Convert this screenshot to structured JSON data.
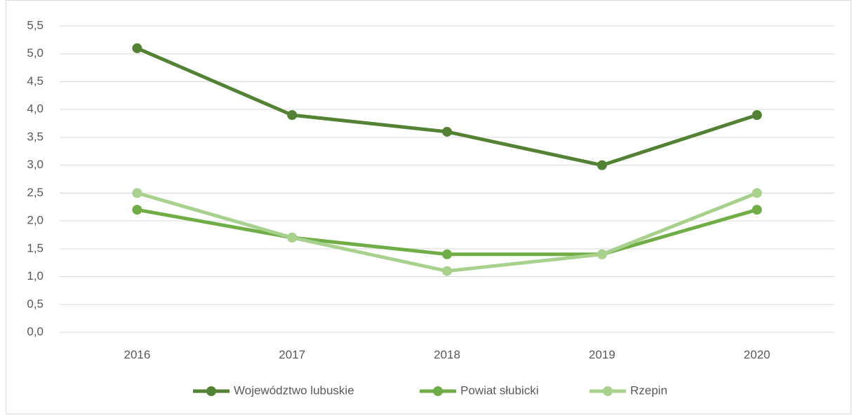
{
  "chart_data": {
    "type": "line",
    "categories": [
      "2016",
      "2017",
      "2018",
      "2019",
      "2020"
    ],
    "series": [
      {
        "name": "Województwo lubuskie",
        "color": "#548235",
        "values": [
          5.1,
          3.9,
          3.6,
          3.0,
          3.9
        ]
      },
      {
        "name": "Powiat słubicki",
        "color": "#70ad47",
        "values": [
          2.2,
          1.7,
          1.4,
          1.4,
          2.2
        ]
      },
      {
        "name": "Rzepin",
        "color": "#a9d18e",
        "values": [
          2.5,
          1.7,
          1.1,
          1.4,
          2.5
        ]
      }
    ],
    "ylim": [
      0,
      5.5
    ],
    "yticks": [
      {
        "value": 0,
        "label": "0,0"
      },
      {
        "value": 0.5,
        "label": "0,5"
      },
      {
        "value": 1,
        "label": "1,0"
      },
      {
        "value": 1.5,
        "label": "1,5"
      },
      {
        "value": 2,
        "label": "2,0"
      },
      {
        "value": 2.5,
        "label": "2,5"
      },
      {
        "value": 3,
        "label": "3,0"
      },
      {
        "value": 3.5,
        "label": "3,5"
      },
      {
        "value": 4,
        "label": "4,0"
      },
      {
        "value": 4.5,
        "label": "4,5"
      },
      {
        "value": 5,
        "label": "5,0"
      },
      {
        "value": 5.5,
        "label": "5,5"
      }
    ],
    "grid": true,
    "legend": "bottom"
  }
}
